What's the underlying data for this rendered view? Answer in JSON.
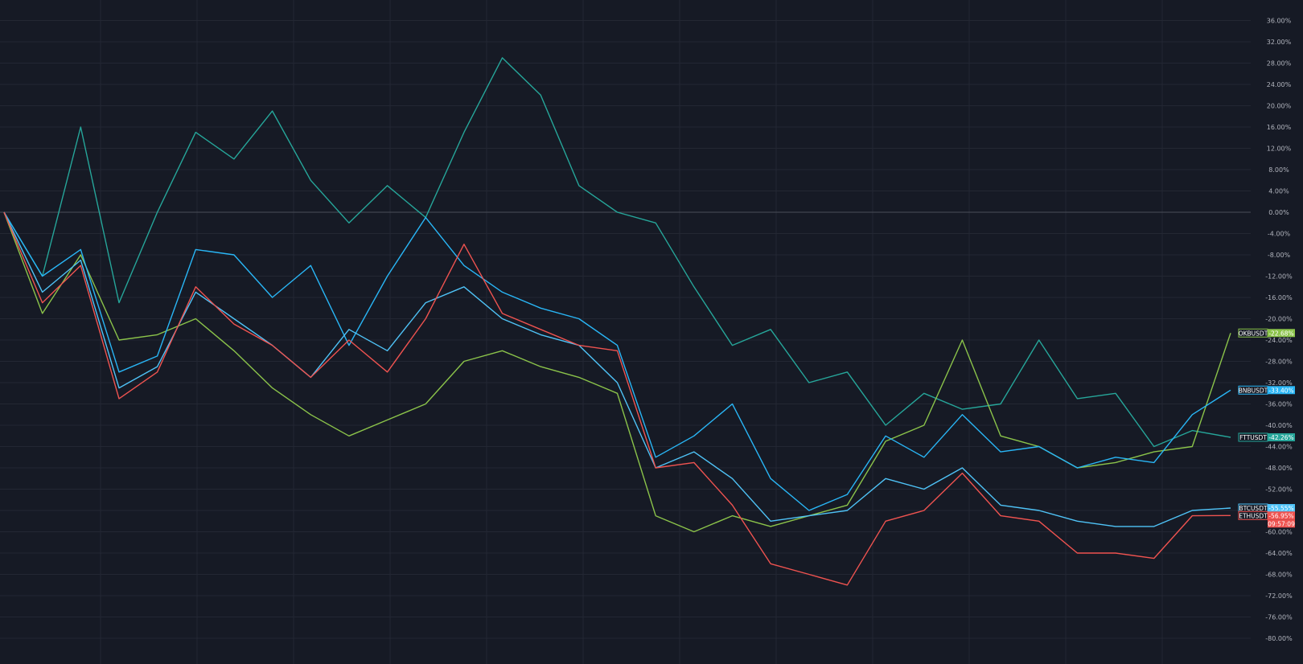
{
  "chart_data": {
    "type": "line",
    "title": "",
    "xlabel": "",
    "ylabel": "",
    "ylim": [
      -82,
      40
    ],
    "y_tick_step": 4,
    "y_ticks": [
      "36.00%",
      "32.00%",
      "28.00%",
      "24.00%",
      "20.00%",
      "16.00%",
      "12.00%",
      "8.00%",
      "4.00%",
      "0.00%",
      "-4.00%",
      "-8.00%",
      "-12.00%",
      "-16.00%",
      "-20.00%",
      "-24.00%",
      "-28.00%",
      "-32.00%",
      "-36.00%",
      "-40.00%",
      "-44.00%",
      "-48.00%",
      "-52.00%",
      "-56.00%",
      "-60.00%",
      "-64.00%",
      "-68.00%",
      "-72.00%",
      "-76.00%",
      "-80.00%"
    ],
    "grid": true,
    "x_index_points": [
      0,
      10,
      20,
      30,
      40,
      50,
      60,
      70,
      80,
      90,
      100,
      110,
      120,
      130,
      140,
      150,
      160,
      170,
      180,
      190,
      200,
      210,
      220,
      230,
      240,
      250,
      260,
      270,
      280,
      290,
      300,
      310,
      320
    ],
    "series": [
      {
        "name": "FTTUSDT",
        "color": "#26a69a",
        "label_text": "-42.26%",
        "last_value": -42.26,
        "values": [
          0,
          -12,
          16,
          -17,
          0,
          15,
          10,
          19,
          6,
          -2,
          5,
          -1,
          15,
          29,
          22,
          5,
          0,
          -2,
          -14,
          -25,
          -22,
          -32,
          -30,
          -40,
          -34,
          -37,
          -36,
          -24,
          -35,
          -34,
          -44,
          -41,
          -42.26
        ]
      },
      {
        "name": "OKBUSDT",
        "color": "#8bc34a",
        "label_text": "-22.68%",
        "last_value": -22.68,
        "values": [
          0,
          -19,
          -8,
          -24,
          -23,
          -20,
          -26,
          -33,
          -38,
          -42,
          -39,
          -36,
          -28,
          -26,
          -29,
          -31,
          -34,
          -57,
          -60,
          -57,
          -59,
          -57,
          -55,
          -43,
          -40,
          -24,
          -42,
          -44,
          -48,
          -47,
          -45,
          -44,
          -22.68
        ]
      },
      {
        "name": "BNBUSDT",
        "color": "#29b6f6",
        "label_text": "-33.40%",
        "last_value": -33.4,
        "values": [
          0,
          -12,
          -7,
          -30,
          -27,
          -7,
          -8,
          -16,
          -10,
          -25,
          -12,
          -1,
          -10,
          -15,
          -18,
          -20,
          -25,
          -46,
          -42,
          -36,
          -50,
          -56,
          -53,
          -42,
          -46,
          -38,
          -45,
          -44,
          -48,
          -46,
          -47,
          -38,
          -33.4
        ]
      },
      {
        "name": "BTCUSDT",
        "color": "#4fc3f7",
        "label_text": "-55.55%",
        "last_value": -55.55,
        "values": [
          0,
          -15,
          -9,
          -33,
          -29,
          -15,
          -20,
          -25,
          -31,
          -22,
          -26,
          -17,
          -14,
          -20,
          -23,
          -25,
          -32,
          -48,
          -45,
          -50,
          -58,
          -57,
          -56,
          -50,
          -52,
          -48,
          -55,
          -56,
          -58,
          -59,
          -59,
          -56,
          -55.55
        ]
      },
      {
        "name": "ETHUSDT",
        "color": "#ef5350",
        "label_text": "-56.95%",
        "label_sub": "09:57:09",
        "last_value": -56.95,
        "values": [
          0,
          -17,
          -10,
          -35,
          -30,
          -14,
          -21,
          -25,
          -31,
          -24,
          -30,
          -20,
          -6,
          -19,
          -22,
          -25,
          -26,
          -48,
          -47,
          -55,
          -66,
          -68,
          -70,
          -58,
          -56,
          -49,
          -57,
          -58,
          -64,
          -64,
          -65,
          -57,
          -56.95
        ]
      }
    ],
    "right_labels_order": [
      "OKBUSDT",
      "BNBUSDT",
      "FTTUSDT",
      "BTCUSDT",
      "ETHUSDT"
    ]
  }
}
